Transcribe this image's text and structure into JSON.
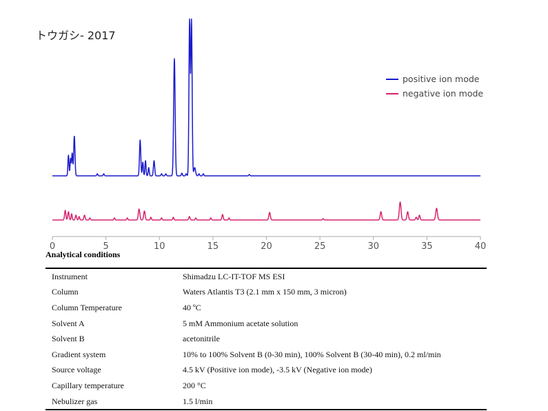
{
  "title": "トウガシ- 2017",
  "colors": {
    "positive": "#1a1acc",
    "negative": "#d6246e",
    "axis": "#aaaaaa"
  },
  "chart_data": {
    "type": "line",
    "title": "トウガシ- 2017",
    "xlabel": "",
    "ylabel": "",
    "xlim": [
      0,
      40
    ],
    "xticks": [
      0,
      5,
      10,
      15,
      20,
      25,
      30,
      35,
      40
    ],
    "xtick_labels": [
      "0",
      "5",
      "10",
      "15",
      "20",
      "25",
      "30",
      "35",
      "40"
    ],
    "grid": false,
    "legend_position": "top-right",
    "y_axis_shown": false,
    "series": [
      {
        "name": "positive ion mode",
        "color": "#1a1acc",
        "baseline": 0,
        "peaks": [
          [
            1.5,
            30,
            0.05
          ],
          [
            1.7,
            25,
            0.05
          ],
          [
            1.85,
            33,
            0.05
          ],
          [
            2.05,
            58,
            0.06
          ],
          [
            4.2,
            3,
            0.05
          ],
          [
            4.8,
            3,
            0.05
          ],
          [
            8.2,
            52,
            0.06
          ],
          [
            8.45,
            20,
            0.05
          ],
          [
            8.7,
            22,
            0.05
          ],
          [
            9.0,
            12,
            0.05
          ],
          [
            9.5,
            22,
            0.06
          ],
          [
            10.2,
            3,
            0.05
          ],
          [
            10.6,
            3,
            0.05
          ],
          [
            11.4,
            170,
            0.07
          ],
          [
            12.1,
            4,
            0.05
          ],
          [
            12.5,
            3,
            0.05
          ],
          [
            12.82,
            225,
            0.06
          ],
          [
            13.0,
            225,
            0.06
          ],
          [
            13.3,
            12,
            0.08
          ],
          [
            13.7,
            3,
            0.05
          ],
          [
            14.1,
            3,
            0.05
          ],
          [
            18.4,
            2,
            0.05
          ]
        ]
      },
      {
        "name": "negative ion mode",
        "color": "#d6246e",
        "baseline": 0,
        "peaks": [
          [
            1.2,
            14,
            0.06
          ],
          [
            1.5,
            12,
            0.06
          ],
          [
            1.8,
            9,
            0.05
          ],
          [
            2.2,
            7,
            0.06
          ],
          [
            2.5,
            5,
            0.05
          ],
          [
            3.0,
            7,
            0.06
          ],
          [
            3.5,
            3,
            0.05
          ],
          [
            5.8,
            3,
            0.05
          ],
          [
            7.0,
            3,
            0.05
          ],
          [
            8.1,
            16,
            0.07
          ],
          [
            8.6,
            13,
            0.07
          ],
          [
            9.2,
            4,
            0.05
          ],
          [
            10.2,
            3,
            0.05
          ],
          [
            11.3,
            4,
            0.05
          ],
          [
            12.8,
            5,
            0.06
          ],
          [
            13.4,
            3,
            0.05
          ],
          [
            14.8,
            3,
            0.05
          ],
          [
            15.9,
            8,
            0.06
          ],
          [
            16.5,
            3,
            0.05
          ],
          [
            20.3,
            11,
            0.07
          ],
          [
            25.3,
            2,
            0.05
          ],
          [
            30.7,
            12,
            0.07
          ],
          [
            32.5,
            26,
            0.08
          ],
          [
            33.2,
            12,
            0.07
          ],
          [
            34.0,
            4,
            0.06
          ],
          [
            34.3,
            7,
            0.06
          ],
          [
            35.9,
            17,
            0.08
          ]
        ]
      }
    ]
  },
  "analytical_conditions": {
    "heading": "Analytical conditions",
    "rows": [
      {
        "parameter": "Instrument",
        "value": "Shimadzu LC-IT-TOF MS ESI"
      },
      {
        "parameter": "Column",
        "value": "Waters Atlantis T3 (2.1 mm x 150 mm, 3 micron)"
      },
      {
        "parameter": "Column Temperature",
        "value": "40 ºC"
      },
      {
        "parameter": "Solvent A",
        "value": "5 mM Ammonium acetate solution"
      },
      {
        "parameter": "Solvent B",
        "value": "acetonitrile"
      },
      {
        "parameter": "Gradient system",
        "value": "10% to 100% Solvent B (0-30 min), 100% Solvent B (30-40 min), 0.2 ml/min"
      },
      {
        "parameter": "Source voltage",
        "value": "4.5 kV (Positive ion mode), -3.5 kV (Negative ion mode)"
      },
      {
        "parameter": "Capillary temperature",
        "value": "200 °C"
      },
      {
        "parameter": "Nebulizer gas",
        "value": "1.5 l/min"
      }
    ]
  }
}
